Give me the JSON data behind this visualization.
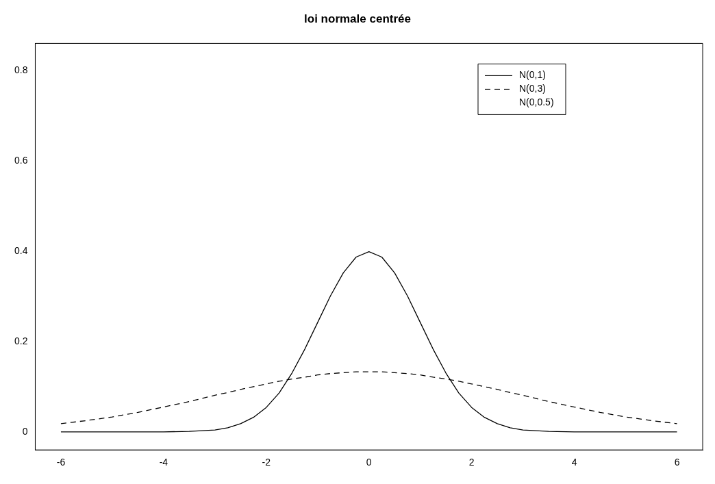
{
  "chart_data": {
    "type": "line",
    "title": "loi normale centrée",
    "x": [
      -6,
      -5.5,
      -5,
      -4.5,
      -4,
      -3.5,
      -3,
      -2.75,
      -2.5,
      -2.25,
      -2,
      -1.75,
      -1.5,
      -1.25,
      -1,
      -0.75,
      -0.5,
      -0.25,
      0,
      0.25,
      0.5,
      0.75,
      1,
      1.25,
      1.5,
      1.75,
      2,
      2.25,
      2.5,
      2.75,
      3,
      3.5,
      4,
      4.5,
      5,
      5.5,
      6
    ],
    "series": [
      {
        "name": "N(0,1)",
        "color": "#000000",
        "line_style": "solid",
        "values": [
          0,
          0,
          0,
          0,
          0,
          0.001,
          0.004,
          0.009,
          0.018,
          0.032,
          0.054,
          0.086,
          0.13,
          0.183,
          0.242,
          0.301,
          0.352,
          0.387,
          0.399,
          0.387,
          0.352,
          0.301,
          0.242,
          0.183,
          0.13,
          0.086,
          0.054,
          0.032,
          0.018,
          0.009,
          0.004,
          0.001,
          0,
          0,
          0,
          0,
          0
        ]
      },
      {
        "name": "N(0,3)",
        "color": "#000000",
        "line_style": "dashed",
        "values": [
          0.018,
          0.025,
          0.033,
          0.043,
          0.055,
          0.067,
          0.081,
          0.087,
          0.094,
          0.1,
          0.106,
          0.112,
          0.117,
          0.121,
          0.126,
          0.129,
          0.131,
          0.133,
          0.133,
          0.133,
          0.131,
          0.129,
          0.126,
          0.121,
          0.117,
          0.112,
          0.106,
          0.1,
          0.094,
          0.087,
          0.081,
          0.067,
          0.055,
          0.043,
          0.033,
          0.025,
          0.018
        ]
      },
      {
        "name": "N(0,0.5)",
        "color": "#000000",
        "line_style": "none",
        "values": [
          null,
          null,
          null,
          null,
          null,
          null,
          null,
          null,
          null,
          null,
          null,
          null,
          null,
          null,
          null,
          null,
          null,
          null,
          null,
          null,
          null,
          null,
          null,
          null,
          null,
          null,
          null,
          null,
          null,
          null,
          null,
          null,
          null,
          null,
          null,
          null,
          null
        ]
      }
    ],
    "xlim": [
      -6.5,
      6.5
    ],
    "xticks": [
      -6,
      -4,
      -2,
      0,
      2,
      4,
      6
    ],
    "ylim": [
      -0.04,
      0.86
    ],
    "yticks": [
      0,
      0.2,
      0.4,
      0.6,
      0.8
    ],
    "grid": false,
    "legend": "top right"
  }
}
